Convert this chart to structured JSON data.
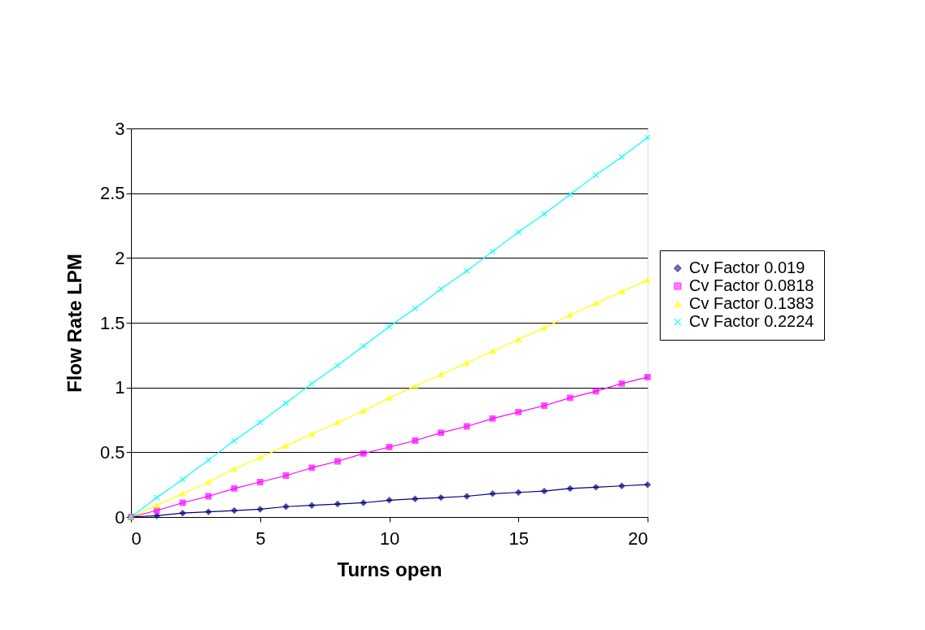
{
  "chart_data": {
    "type": "line",
    "xlabel": "Turns open",
    "ylabel": "Flow Rate LPM",
    "x": [
      0,
      1,
      2,
      3,
      4,
      5,
      6,
      7,
      8,
      9,
      10,
      11,
      12,
      13,
      14,
      15,
      16,
      17,
      18,
      19,
      20
    ],
    "series": [
      {
        "name": "Cv Factor 0.019",
        "color": "#000080",
        "marker": "diamond",
        "values": [
          0,
          0.01,
          0.03,
          0.04,
          0.05,
          0.06,
          0.08,
          0.09,
          0.1,
          0.11,
          0.13,
          0.14,
          0.15,
          0.16,
          0.18,
          0.19,
          0.2,
          0.22,
          0.23,
          0.24,
          0.25
        ]
      },
      {
        "name": "Cv Factor 0.0818",
        "color": "#ff00ff",
        "marker": "square",
        "values": [
          0,
          0.05,
          0.11,
          0.16,
          0.22,
          0.27,
          0.32,
          0.38,
          0.43,
          0.49,
          0.54,
          0.59,
          0.65,
          0.7,
          0.76,
          0.81,
          0.86,
          0.92,
          0.97,
          1.03,
          1.08
        ]
      },
      {
        "name": "Cv Factor 0.1383",
        "color": "#ffff00",
        "marker": "triangle",
        "values": [
          0,
          0.09,
          0.18,
          0.27,
          0.37,
          0.46,
          0.55,
          0.64,
          0.73,
          0.82,
          0.92,
          1.01,
          1.1,
          1.19,
          1.28,
          1.37,
          1.46,
          1.56,
          1.65,
          1.74,
          1.83
        ]
      },
      {
        "name": "Cv Factor 0.2224",
        "color": "#00ffff",
        "marker": "cross",
        "values": [
          0,
          0.15,
          0.29,
          0.44,
          0.59,
          0.73,
          0.88,
          1.03,
          1.17,
          1.32,
          1.47,
          1.61,
          1.76,
          1.9,
          2.05,
          2.2,
          2.34,
          2.49,
          2.64,
          2.78,
          2.93
        ]
      }
    ],
    "xlim": [
      0,
      20
    ],
    "xticks": [
      0,
      5,
      10,
      15,
      20
    ],
    "ylim": [
      0,
      3
    ],
    "yticks": [
      0,
      0.5,
      1,
      1.5,
      2,
      2.5,
      3
    ],
    "grid": "y",
    "legend": "right",
    "line_style": "solid"
  }
}
